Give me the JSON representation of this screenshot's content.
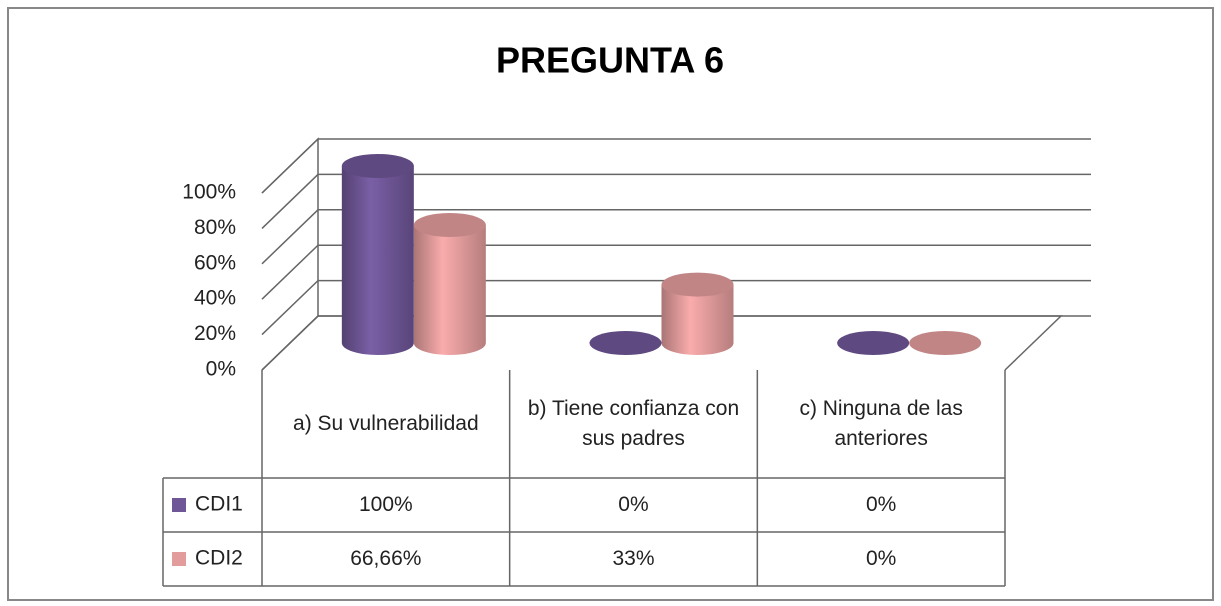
{
  "chart_data": {
    "type": "bar3d",
    "title": "PREGUNTA 6",
    "categories": [
      "a) Su vulnerabilidad",
      "b) Tiene confianza con sus padres",
      "c) Ninguna de las anteriores"
    ],
    "series": [
      {
        "name": "CDI1",
        "color": "#6f5697",
        "values": [
          100,
          0,
          0
        ],
        "value_labels": [
          "100%",
          "0%",
          "0%"
        ]
      },
      {
        "name": "CDI2",
        "color": "#e39c9c",
        "values": [
          66.66,
          33,
          0
        ],
        "value_labels": [
          "66,66%",
          "33%",
          "0%"
        ]
      }
    ],
    "ylim": [
      0,
      100
    ],
    "yticks": [
      {
        "value": 0,
        "label": "0%"
      },
      {
        "value": 20,
        "label": "20%"
      },
      {
        "value": 40,
        "label": "40%"
      },
      {
        "value": 60,
        "label": "60%"
      },
      {
        "value": 80,
        "label": "80%"
      },
      {
        "value": 100,
        "label": "100%"
      }
    ],
    "grid": true
  }
}
